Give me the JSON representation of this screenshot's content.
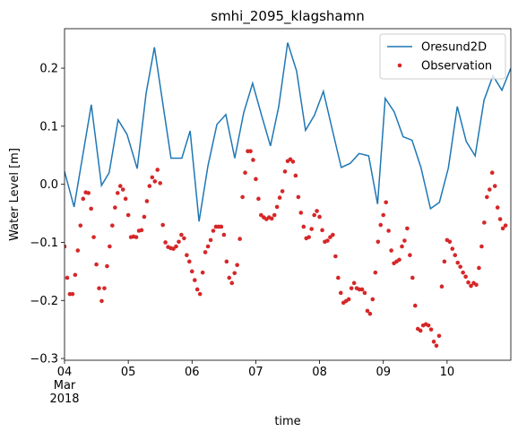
{
  "chart_data": {
    "type": "line",
    "title": "smhi_2095_klagshamn",
    "xlabel": "time",
    "ylabel": "Water Level [m]",
    "xlim": [
      4,
      11
    ],
    "ylim": [
      -0.303,
      0.268
    ],
    "xticks": [
      {
        "value": 4,
        "label": "04\nMar\n2018"
      },
      {
        "value": 5,
        "label": "05"
      },
      {
        "value": 6,
        "label": "06"
      },
      {
        "value": 7,
        "label": "07"
      },
      {
        "value": 8,
        "label": "08"
      },
      {
        "value": 9,
        "label": "09"
      },
      {
        "value": 10,
        "label": "10"
      }
    ],
    "yticks": [
      {
        "value": -0.3,
        "label": "−0.3"
      },
      {
        "value": -0.2,
        "label": "−0.2"
      },
      {
        "value": -0.1,
        "label": "−0.1"
      },
      {
        "value": 0,
        "label": "0.0"
      },
      0.1,
      0.2
    ],
    "legend": "upper right",
    "grid": false,
    "series": [
      {
        "name": "Oresund2D",
        "type": "line",
        "color": "#1f77b4",
        "x": [
          4.0,
          4.15,
          4.42,
          4.58,
          4.7,
          4.84,
          4.98,
          5.14,
          5.28,
          5.41,
          5.55,
          5.67,
          5.84,
          5.97,
          6.11,
          6.25,
          6.39,
          6.53,
          6.67,
          6.81,
          6.95,
          7.09,
          7.23,
          7.36,
          7.5,
          7.64,
          7.78,
          7.92,
          8.06,
          8.2,
          8.34,
          8.48,
          8.62,
          8.77,
          8.91,
          9.03,
          9.17,
          9.31,
          9.45,
          9.59,
          9.74,
          9.88,
          10.02,
          10.16,
          10.3,
          10.44,
          10.58,
          10.72,
          10.86,
          11.0
        ],
        "values": [
          0.022,
          -0.039,
          0.137,
          -0.002,
          0.02,
          0.111,
          0.086,
          0.027,
          0.157,
          0.236,
          0.133,
          0.045,
          0.045,
          0.092,
          -0.064,
          0.032,
          0.103,
          0.12,
          0.045,
          0.123,
          0.174,
          0.119,
          0.066,
          0.134,
          0.244,
          0.195,
          0.093,
          0.119,
          0.16,
          0.094,
          0.029,
          0.036,
          0.053,
          0.049,
          -0.034,
          0.148,
          0.125,
          0.082,
          0.076,
          0.029,
          -0.042,
          -0.031,
          0.028,
          0.134,
          0.074,
          0.049,
          0.145,
          0.187,
          0.162,
          0.2
        ]
      },
      {
        "name": "Observation",
        "type": "scatter",
        "color": "#d62728",
        "x": [
          4,
          4.042,
          4.083,
          4.125,
          4.167,
          4.208,
          4.25,
          4.292,
          4.333,
          4.375,
          4.417,
          4.458,
          4.5,
          4.542,
          4.583,
          4.625,
          4.667,
          4.708,
          4.75,
          4.792,
          4.833,
          4.875,
          4.917,
          4.958,
          5,
          5.042,
          5.083,
          5.125,
          5.167,
          5.208,
          5.25,
          5.292,
          5.333,
          5.375,
          5.417,
          5.458,
          5.5,
          5.542,
          5.583,
          5.625,
          5.667,
          5.708,
          5.75,
          5.792,
          5.833,
          5.875,
          5.917,
          5.958,
          6,
          6.042,
          6.083,
          6.125,
          6.167,
          6.208,
          6.25,
          6.292,
          6.333,
          6.375,
          6.417,
          6.458,
          6.5,
          6.542,
          6.583,
          6.625,
          6.667,
          6.708,
          6.75,
          6.792,
          6.833,
          6.875,
          6.917,
          6.958,
          7,
          7.042,
          7.083,
          7.125,
          7.167,
          7.208,
          7.25,
          7.292,
          7.333,
          7.375,
          7.417,
          7.458,
          7.5,
          7.542,
          7.583,
          7.625,
          7.667,
          7.708,
          7.75,
          7.792,
          7.833,
          7.875,
          7.917,
          7.958,
          8,
          8.042,
          8.083,
          8.125,
          8.167,
          8.208,
          8.25,
          8.292,
          8.333,
          8.375,
          8.417,
          8.458,
          8.5,
          8.542,
          8.583,
          8.625,
          8.667,
          8.708,
          8.75,
          8.792,
          8.833,
          8.875,
          8.917,
          8.958,
          9,
          9.042,
          9.083,
          9.125,
          9.167,
          9.208,
          9.25,
          9.292,
          9.333,
          9.375,
          9.417,
          9.458,
          9.5,
          9.542,
          9.583,
          9.625,
          9.667,
          9.708,
          9.75,
          9.792,
          9.833,
          9.875,
          9.917,
          9.958,
          10,
          10.042,
          10.083,
          10.125,
          10.167,
          10.208,
          10.25,
          10.292,
          10.333,
          10.375,
          10.417,
          10.458,
          10.5,
          10.542,
          10.583,
          10.625,
          10.667,
          10.708,
          10.75,
          10.792,
          10.833,
          10.875,
          10.917
        ],
        "values": [
          -0.107,
          -0.161,
          -0.189,
          -0.189,
          -0.156,
          -0.114,
          -0.071,
          -0.025,
          -0.014,
          -0.015,
          -0.042,
          -0.091,
          -0.138,
          -0.179,
          -0.201,
          -0.179,
          -0.141,
          -0.107,
          -0.071,
          -0.04,
          -0.015,
          -0.003,
          -0.009,
          -0.025,
          -0.053,
          -0.091,
          -0.09,
          -0.091,
          -0.08,
          -0.079,
          -0.056,
          -0.029,
          -0.003,
          0.012,
          0.005,
          0.025,
          0.002,
          -0.07,
          -0.1,
          -0.108,
          -0.11,
          -0.111,
          -0.107,
          -0.099,
          -0.087,
          -0.093,
          -0.122,
          -0.133,
          -0.15,
          -0.165,
          -0.181,
          -0.189,
          -0.152,
          -0.117,
          -0.107,
          -0.096,
          -0.08,
          -0.073,
          -0.073,
          -0.073,
          -0.087,
          -0.133,
          -0.161,
          -0.17,
          -0.153,
          -0.139,
          -0.094,
          -0.022,
          0.02,
          0.057,
          0.057,
          0.042,
          0.009,
          -0.025,
          -0.053,
          -0.057,
          -0.06,
          -0.057,
          -0.059,
          -0.053,
          -0.039,
          -0.023,
          -0.012,
          0.022,
          0.04,
          0.043,
          0.039,
          0.015,
          -0.022,
          -0.049,
          -0.073,
          -0.093,
          -0.091,
          -0.077,
          -0.053,
          -0.046,
          -0.056,
          -0.079,
          -0.099,
          -0.097,
          -0.091,
          -0.087,
          -0.124,
          -0.161,
          -0.187,
          -0.204,
          -0.201,
          -0.198,
          -0.179,
          -0.17,
          -0.179,
          -0.181,
          -0.181,
          -0.187,
          -0.218,
          -0.223,
          -0.198,
          -0.152,
          -0.099,
          -0.07,
          -0.053,
          -0.031,
          -0.08,
          -0.114,
          -0.136,
          -0.133,
          -0.13,
          -0.107,
          -0.097,
          -0.076,
          -0.122,
          -0.161,
          -0.209,
          -0.249,
          -0.252,
          -0.243,
          -0.241,
          -0.243,
          -0.25,
          -0.271,
          -0.278,
          -0.261,
          -0.176,
          -0.133,
          -0.096,
          -0.099,
          -0.111,
          -0.122,
          -0.135,
          -0.142,
          -0.152,
          -0.159,
          -0.169,
          -0.175,
          -0.17,
          -0.173,
          -0.144,
          -0.107,
          -0.066,
          -0.022,
          -0.009,
          0.02,
          -0.003,
          -0.04,
          -0.06,
          -0.076,
          -0.071
        ]
      }
    ]
  }
}
